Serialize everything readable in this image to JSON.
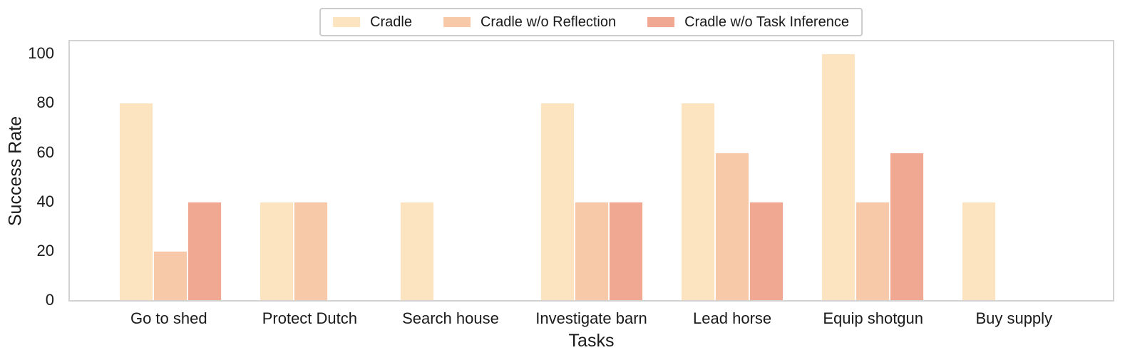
{
  "chart_data": {
    "type": "bar",
    "title": "",
    "xlabel": "Tasks",
    "ylabel": "Success Rate",
    "categories": [
      "Go to shed",
      "Protect Dutch",
      "Search house",
      "Investigate barn",
      "Lead horse",
      "Equip shotgun",
      "Buy supply"
    ],
    "series": [
      {
        "name": "Cradle",
        "color": "#FDE4C0",
        "values": [
          80,
          40,
          40,
          80,
          80,
          100,
          40
        ]
      },
      {
        "name": "Cradle w/o Reflection",
        "color": "#F8C9A8",
        "values": [
          20,
          40,
          0,
          40,
          60,
          40,
          0
        ]
      },
      {
        "name": "Cradle w/o Task Inference",
        "color": "#F0A892",
        "values": [
          40,
          0,
          0,
          40,
          40,
          60,
          0
        ]
      }
    ],
    "yticks": [
      0,
      20,
      40,
      60,
      80,
      100
    ],
    "ylim": [
      0,
      105
    ],
    "grid": false,
    "legend_position": "top-center",
    "axis_border_color": "#d2d2d2",
    "legend_border_color": "#cccccc",
    "text_color": "#1a1a1a"
  }
}
